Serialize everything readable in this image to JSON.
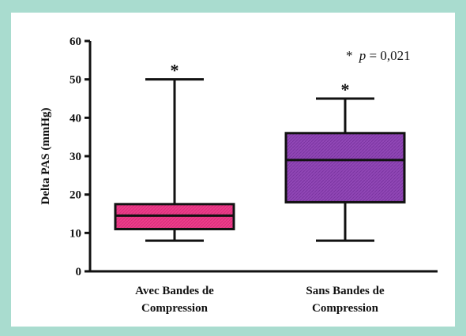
{
  "colors": {
    "background": "#a9dccf",
    "panel": "#ffffff",
    "axis": "#111111"
  },
  "chart_data": {
    "type": "boxplot",
    "ylabel": "Delta PAS (mmHg)",
    "ylim": [
      0,
      60
    ],
    "yticks": [
      0,
      10,
      20,
      30,
      40,
      50,
      60
    ],
    "annotation": {
      "star": "*",
      "p_symbol": "p",
      "text": " = 0,021"
    },
    "boxes": [
      {
        "label_line1": "Avec Bandes de",
        "label_line2": "Compression",
        "min": 8,
        "q1": 11,
        "median": 14.5,
        "q3": 17.5,
        "max": 50,
        "color": "#ec3d8a",
        "marker": "*"
      },
      {
        "label_line1": "Sans Bandes de",
        "label_line2": "Compression",
        "min": 8,
        "q1": 18,
        "median": 29,
        "q3": 36,
        "max": 45,
        "color": "#9147b6",
        "marker": "*"
      }
    ]
  }
}
